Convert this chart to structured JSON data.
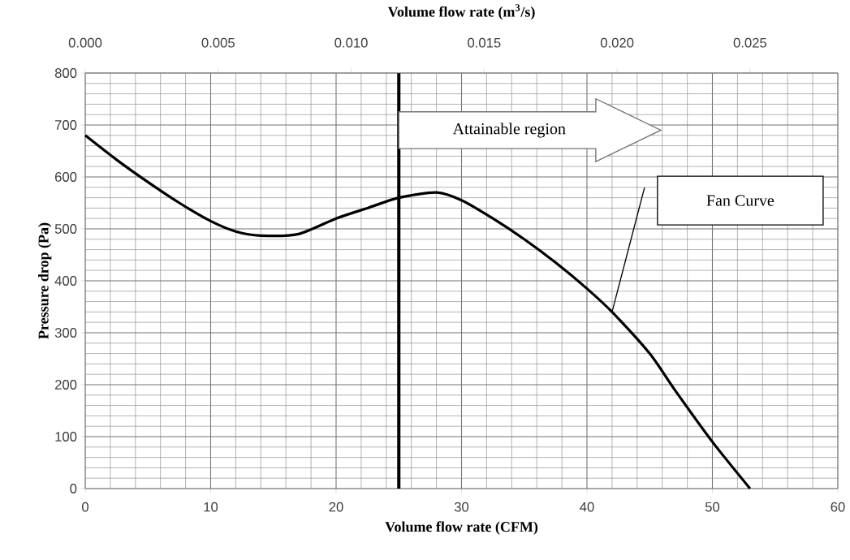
{
  "chart_data": {
    "type": "line",
    "xlabel": "Volume flow rate (CFM)",
    "ylabel": "Pressure drop (Pa)",
    "x2label": "Volume flow rate (m$^{3}$/s)",
    "x": [
      0,
      2.5,
      5,
      7.5,
      10,
      12,
      14,
      17,
      20,
      22.5,
      25,
      28,
      30,
      32.5,
      35,
      37.5,
      40,
      42,
      45,
      47,
      50,
      53
    ],
    "series": [
      {
        "color": "#000000",
        "values": [
          680,
          633,
          590,
          550,
          515,
          495,
          487,
          490,
          520,
          540,
          560,
          570,
          555,
          520,
          480,
          435,
          385,
          340,
          260,
          190,
          90,
          0
        ]
      }
    ],
    "xlim": [
      0,
      60
    ],
    "xticks": [
      0,
      10,
      20,
      30,
      40,
      50,
      60
    ],
    "ylim": [
      0,
      800
    ],
    "yticks": [
      0,
      100,
      200,
      300,
      400,
      500,
      600,
      700,
      800
    ],
    "x2lim": [
      0,
      0.0283
    ],
    "x2ticks": [
      {
        "value": 0,
        "label": "0.000"
      },
      {
        "value": 0.005,
        "label": "0.005"
      },
      {
        "value": 0.01,
        "label": "0.010"
      },
      {
        "value": 0.015,
        "label": "0.015"
      },
      {
        "value": 0.02,
        "label": "0.020"
      },
      {
        "value": 0.025,
        "label": "0.025"
      }
    ],
    "ref_lines": [
      {
        "axis": "x",
        "value": 25,
        "color": "#000000"
      }
    ],
    "annotations": [
      "Attainable region",
      "Fan Curve"
    ],
    "grid": true,
    "marker": "none",
    "line_style": "solid"
  }
}
